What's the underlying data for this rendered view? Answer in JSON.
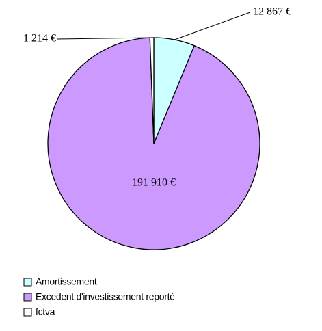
{
  "chart_data": {
    "type": "pie",
    "categories": [
      "Amortissement",
      "Excedent d'investissement reporté",
      "fctva"
    ],
    "values": [
      12867,
      191910,
      1214
    ],
    "value_labels": [
      "12 867 €",
      "191 910 €",
      "1 214 €"
    ],
    "colors": [
      "#ccffff",
      "#cc99ff",
      "#ffffff"
    ],
    "legend": "bottom"
  }
}
